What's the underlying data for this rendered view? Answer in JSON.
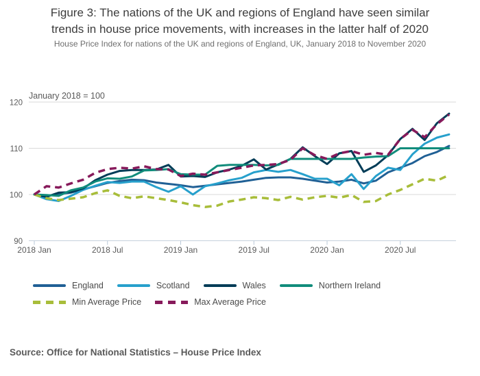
{
  "header": {
    "title_lines": [
      "Figure 3: The nations of the UK and regions of England have seen similar",
      "trends in house price movements, with increases in the latter half of 2020"
    ],
    "subtitle": "House Price Index for nations of the UK and regions of England, UK, January 2018 to November 2020"
  },
  "chart_data": {
    "type": "line",
    "axis_note": "January 2018 = 100",
    "ylabel": "",
    "xlabel": "",
    "ylim": [
      90,
      122
    ],
    "y_ticks": [
      120,
      110,
      100,
      90
    ],
    "x_tick_indices": [
      0,
      6,
      12,
      18,
      24,
      30
    ],
    "grid_color": "#d9d9d9",
    "tick_color": "#b9c8d8",
    "axis_text_color": "#595959",
    "months": [
      "2018 Jan",
      "2018 Feb",
      "2018 Mar",
      "2018 Apr",
      "2018 May",
      "2018 Jun",
      "2018 Jul",
      "2018 Aug",
      "2018 Sep",
      "2018 Oct",
      "2018 Nov",
      "2018 Dec",
      "2019 Jan",
      "2019 Feb",
      "2019 Mar",
      "2019 Apr",
      "2019 May",
      "2019 Jun",
      "2019 Jul",
      "2019 Aug",
      "2019 Sep",
      "2019 Oct",
      "2019 Nov",
      "2019 Dec",
      "2020 Jan",
      "2020 Feb",
      "2020 Mar",
      "2020 Apr",
      "2020 May",
      "2020 Jun",
      "2020 Jul",
      "2020 Aug",
      "2020 Sep",
      "2020 Oct",
      "2020 Nov"
    ],
    "series": [
      {
        "name": "England",
        "slug": "england",
        "color": "#206095",
        "dash": false,
        "values": [
          100,
          99.7,
          100.1,
          100.4,
          101.1,
          101.8,
          102.5,
          102.9,
          103.2,
          103.1,
          102.6,
          102.3,
          102.0,
          101.6,
          101.9,
          102.2,
          102.5,
          102.8,
          103.2,
          103.6,
          103.7,
          103.7,
          103.4,
          103.0,
          102.6,
          102.8,
          103.2,
          102.4,
          103.0,
          104.8,
          105.8,
          106.8,
          108.3,
          109.2,
          110.5
        ]
      },
      {
        "name": "Scotland",
        "slug": "scotland",
        "color": "#27a0cc",
        "dash": false,
        "values": [
          100,
          99.0,
          98.6,
          99.7,
          101.0,
          101.9,
          102.7,
          102.5,
          102.8,
          102.8,
          101.6,
          100.6,
          101.8,
          100.0,
          101.8,
          102.4,
          103.1,
          103.6,
          104.8,
          105.3,
          104.9,
          105.3,
          104.4,
          103.4,
          103.4,
          102.0,
          104.4,
          101.2,
          104.0,
          105.8,
          105.3,
          108.7,
          111.0,
          112.3,
          113.0
        ]
      },
      {
        "name": "Wales",
        "slug": "wales",
        "color": "#003c57",
        "dash": false,
        "values": [
          100,
          99.5,
          100.4,
          100.5,
          101.3,
          103.1,
          104.3,
          105.1,
          105.3,
          105.3,
          105.4,
          106.4,
          103.9,
          104.0,
          103.8,
          104.8,
          105.4,
          106.2,
          107.6,
          105.4,
          106.5,
          107.7,
          110.2,
          108.3,
          106.6,
          108.9,
          109.4,
          104.9,
          106.3,
          108.5,
          112.0,
          114.2,
          111.8,
          115.4,
          117.5
        ]
      },
      {
        "name": "Northern Ireland",
        "slug": "northern-ireland",
        "color": "#118c7b",
        "dash": false,
        "values": [
          100,
          99.9,
          99.7,
          100.9,
          101.5,
          102.8,
          103.5,
          103.4,
          103.9,
          105.2,
          105.3,
          105.5,
          104.4,
          104.3,
          104.3,
          106.2,
          106.4,
          106.4,
          106.4,
          106.3,
          106.4,
          107.7,
          107.7,
          107.7,
          107.7,
          107.7,
          107.7,
          108.0,
          108.2,
          108.3,
          110.0,
          110.0,
          110.0,
          110.0,
          110.0
        ]
      },
      {
        "name": "Min Average Price",
        "slug": "min-average-price",
        "color": "#a8bd3a",
        "dash": true,
        "values": [
          100,
          99.2,
          98.8,
          99.1,
          99.4,
          100.3,
          100.9,
          99.7,
          99.2,
          99.6,
          99.2,
          98.8,
          98.3,
          97.7,
          97.3,
          97.6,
          98.5,
          98.9,
          99.4,
          99.2,
          98.8,
          99.5,
          98.9,
          99.4,
          99.7,
          99.3,
          99.9,
          98.4,
          98.6,
          100.0,
          101.0,
          102.2,
          103.4,
          103.0,
          104.2
        ]
      },
      {
        "name": "Max Average Price",
        "slug": "max-average-price",
        "color": "#871a5b",
        "dash": true,
        "values": [
          100,
          101.8,
          101.5,
          102.4,
          103.2,
          104.7,
          105.5,
          105.8,
          105.6,
          106.1,
          105.5,
          105.4,
          104.0,
          104.5,
          104.3,
          104.8,
          105.3,
          105.8,
          106.3,
          106.4,
          106.6,
          107.5,
          110.0,
          108.5,
          107.7,
          108.9,
          109.4,
          108.6,
          109.0,
          108.6,
          112.0,
          114.0,
          112.4,
          115.2,
          117.3
        ]
      }
    ]
  },
  "source": "Source: Office for National Statistics – House Price Index"
}
